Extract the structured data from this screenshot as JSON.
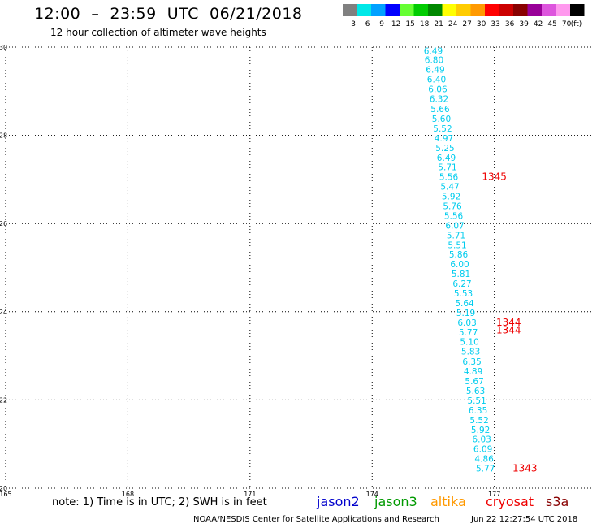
{
  "header": {
    "title": "12:00  –  23:59  UTC  06/21/2018",
    "subtitle": "12 hour collection of altimeter wave heights"
  },
  "legend": {
    "unit": "(ft)",
    "swatches": [
      {
        "color": "#808080",
        "label": "3"
      },
      {
        "color": "#00e8e8",
        "label": "6"
      },
      {
        "color": "#00a0ff",
        "label": "9"
      },
      {
        "color": "#0000ff",
        "label": "12"
      },
      {
        "color": "#66ff33",
        "label": "15"
      },
      {
        "color": "#00cc00",
        "label": "18"
      },
      {
        "color": "#008800",
        "label": "21"
      },
      {
        "color": "#ffff00",
        "label": "24"
      },
      {
        "color": "#ffcc00",
        "label": "27"
      },
      {
        "color": "#ff9900",
        "label": "30"
      },
      {
        "color": "#ff0000",
        "label": "33"
      },
      {
        "color": "#cc0000",
        "label": "36"
      },
      {
        "color": "#880000",
        "label": "39"
      },
      {
        "color": "#990099",
        "label": "42"
      },
      {
        "color": "#dd55dd",
        "label": "45"
      },
      {
        "color": "#ff99ee",
        "label": "70"
      },
      {
        "color": "#000000",
        "label": ""
      }
    ]
  },
  "map": {
    "lon_ticks": [
      "165",
      "168",
      "171",
      "174",
      "177"
    ],
    "lat_ticks": [
      "20",
      "22",
      "24",
      "26",
      "28",
      "30"
    ],
    "lon_range": [
      165,
      179.4
    ],
    "lat_range": [
      20,
      30
    ],
    "grid": "dotted",
    "track_color": "#00ccee",
    "time_color": "#ee0000",
    "track": [
      {
        "lon": 175.5,
        "lat": 29.92,
        "value": "6.49"
      },
      {
        "lon": 175.52,
        "lat": 29.71,
        "value": "6.80"
      },
      {
        "lon": 175.55,
        "lat": 29.49,
        "value": "6.49"
      },
      {
        "lon": 175.58,
        "lat": 29.27,
        "value": "6.40"
      },
      {
        "lon": 175.61,
        "lat": 29.05,
        "value": "6.06"
      },
      {
        "lon": 175.64,
        "lat": 28.83,
        "value": "6.32"
      },
      {
        "lon": 175.67,
        "lat": 28.6,
        "value": "5.66"
      },
      {
        "lon": 175.7,
        "lat": 28.38,
        "value": "5.60"
      },
      {
        "lon": 175.73,
        "lat": 28.16,
        "value": "5.52"
      },
      {
        "lon": 175.76,
        "lat": 27.94,
        "value": "4.97"
      },
      {
        "lon": 175.79,
        "lat": 27.72,
        "value": "5.25"
      },
      {
        "lon": 175.82,
        "lat": 27.5,
        "value": "6.49"
      },
      {
        "lon": 175.85,
        "lat": 27.28,
        "value": "5.71"
      },
      {
        "lon": 175.88,
        "lat": 27.06,
        "value": "5.56"
      },
      {
        "lon": 175.91,
        "lat": 26.84,
        "value": "5.47"
      },
      {
        "lon": 175.94,
        "lat": 26.62,
        "value": "5.92"
      },
      {
        "lon": 175.97,
        "lat": 26.4,
        "value": "5.76"
      },
      {
        "lon": 176.0,
        "lat": 26.18,
        "value": "5.56"
      },
      {
        "lon": 176.03,
        "lat": 25.96,
        "value": "6.07"
      },
      {
        "lon": 176.06,
        "lat": 25.74,
        "value": "5.71"
      },
      {
        "lon": 176.09,
        "lat": 25.52,
        "value": "5.51"
      },
      {
        "lon": 176.12,
        "lat": 25.3,
        "value": "5.86"
      },
      {
        "lon": 176.15,
        "lat": 25.08,
        "value": "6.00"
      },
      {
        "lon": 176.18,
        "lat": 24.86,
        "value": "5.81"
      },
      {
        "lon": 176.21,
        "lat": 24.64,
        "value": "6.27"
      },
      {
        "lon": 176.24,
        "lat": 24.42,
        "value": "5.53"
      },
      {
        "lon": 176.27,
        "lat": 24.2,
        "value": "5.64"
      },
      {
        "lon": 176.3,
        "lat": 23.98,
        "value": "5.19"
      },
      {
        "lon": 176.33,
        "lat": 23.76,
        "value": "6.03"
      },
      {
        "lon": 176.36,
        "lat": 23.54,
        "value": "5.77"
      },
      {
        "lon": 176.39,
        "lat": 23.32,
        "value": "5.10"
      },
      {
        "lon": 176.42,
        "lat": 23.1,
        "value": "5.83"
      },
      {
        "lon": 176.45,
        "lat": 22.87,
        "value": "6.35"
      },
      {
        "lon": 176.48,
        "lat": 22.65,
        "value": "4.89"
      },
      {
        "lon": 176.51,
        "lat": 22.43,
        "value": "5.67"
      },
      {
        "lon": 176.54,
        "lat": 22.21,
        "value": "5.63"
      },
      {
        "lon": 176.57,
        "lat": 21.99,
        "value": "5.51"
      },
      {
        "lon": 176.6,
        "lat": 21.77,
        "value": "6.35"
      },
      {
        "lon": 176.63,
        "lat": 21.55,
        "value": "5.52"
      },
      {
        "lon": 176.66,
        "lat": 21.33,
        "value": "5.92"
      },
      {
        "lon": 176.69,
        "lat": 21.11,
        "value": "6.03"
      },
      {
        "lon": 176.72,
        "lat": 20.89,
        "value": "6.09"
      },
      {
        "lon": 176.75,
        "lat": 20.67,
        "value": "4.86"
      },
      {
        "lon": 176.78,
        "lat": 20.45,
        "value": "5.77"
      }
    ],
    "time_labels": [
      {
        "lon": 177.0,
        "lat": 27.06,
        "value": "1345"
      },
      {
        "lon": 177.35,
        "lat": 23.76,
        "value": "1344"
      },
      {
        "lon": 177.35,
        "lat": 23.58,
        "value": "1344"
      },
      {
        "lon": 177.75,
        "lat": 20.45,
        "value": "1343"
      }
    ]
  },
  "footer": {
    "note": "note:  1) Time is in UTC;  2) SWH is in feet",
    "satellites": [
      {
        "name": "jason2",
        "color": "#0000cc"
      },
      {
        "name": "jason3",
        "color": "#009900"
      },
      {
        "name": "altika",
        "color": "#ff9900"
      },
      {
        "name": "cryosat",
        "color": "#ee0000"
      },
      {
        "name": "s3a",
        "color": "#880000"
      }
    ],
    "credit": "NOAA/NESDIS Center for Satellite Applications and Research",
    "timestamp": "Jun 22 12:27:54 UTC 2018"
  }
}
